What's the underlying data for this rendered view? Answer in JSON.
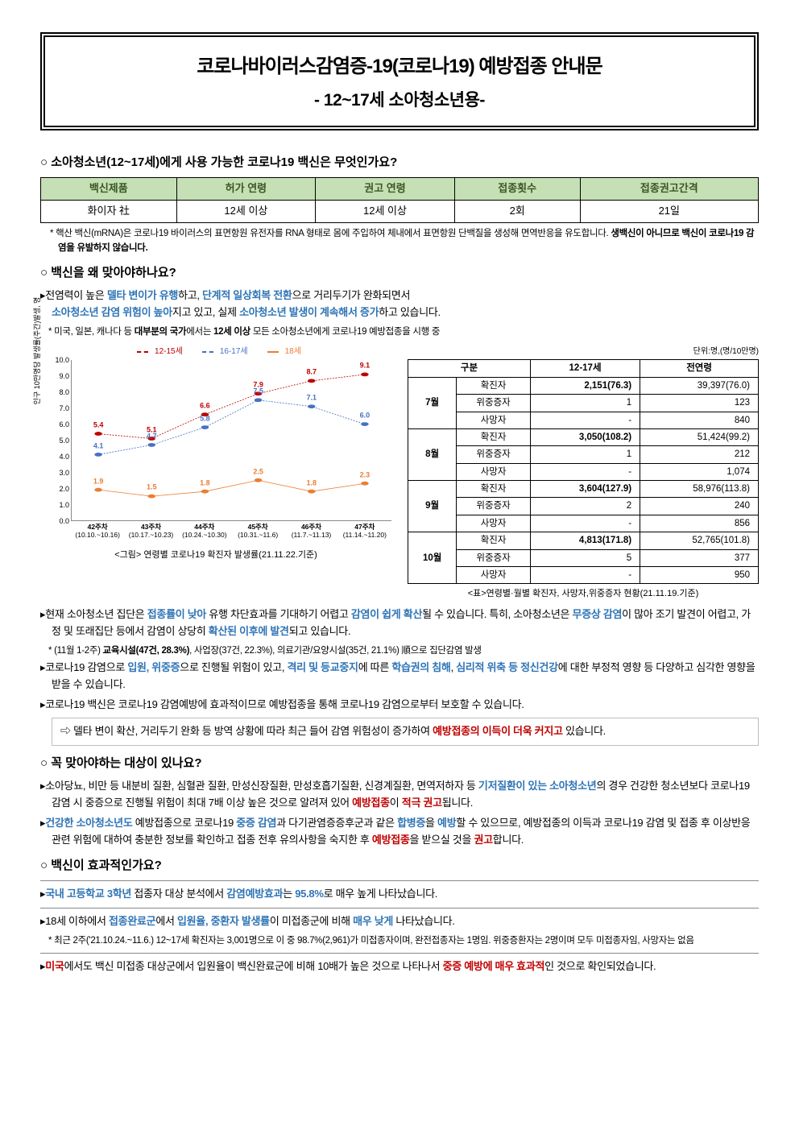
{
  "header": {
    "title_main": "코로나바이러스감염증-19(코로나19) 예방접종 안내문",
    "title_sub": "- 12~17세 소아청소년용-"
  },
  "q1": {
    "heading": "○ 소아청소년(12~17세)에게 사용 가능한 코로나19 백신은 무엇인가요?",
    "table": {
      "headers": [
        "백신제품",
        "허가 연령",
        "권고 연령",
        "접종횟수",
        "접종권고간격"
      ],
      "row": [
        "화이자 社",
        "12세 이상",
        "12세 이상",
        "2회",
        "21일"
      ]
    },
    "note": "* 핵산 백신(mRNA)은 코로나19 바이러스의 표면항원 유전자를 RNA 형태로 몸에 주입하여 체내에서 표면항원 단백질을 생성해 면역반응을 유도합니다. "
  },
  "q1_note_bold": "생백신이 아니므로 백신이 코로나19 감염을 유발하지 않습니다.",
  "q2": {
    "heading": "○ 백신을 왜 맞아야하나요?",
    "line1_a": "▸전염력이 높은 ",
    "line1_b": "델타 변이가 유행",
    "line1_c": "하고, ",
    "line1_d": "단계적 일상회복 전환",
    "line1_e": "으로 거리두기가 완화되면서",
    "line2_a": "소아청소년 감염 위험이 높아",
    "line2_b": "지고 있고, 실제 ",
    "line2_c": "소아청소년 발생이 계속해서 증가",
    "line2_d": "하고 있습니다.",
    "note": "* 미국, 일본, 캐나다 등 ",
    "note_b1": "대부분의 국가",
    "note_mid": "에서는 ",
    "note_b2": "12세 이상",
    "note_end": " 모든 소아청소년에게 코로나19 예방접종을 시행 중"
  },
  "chart": {
    "legend": [
      "12-15세",
      "16-17세",
      "18세"
    ],
    "colors": [
      "#c00000",
      "#4472c4",
      "#ed7d31"
    ],
    "ymin": 0.0,
    "ymax": 10.0,
    "ystep": 1.0,
    "x_labels": [
      "42주차\n(10.10.~10.16)",
      "43주차\n(10.17.~10.23)",
      "44주차\n(10.24.~10.30)",
      "45주차\n(10.31.~11.6)",
      "46주차\n(11.7.~11.13)",
      "47주차\n(11.14.~11.20)"
    ],
    "series": {
      "s1215": [
        5.4,
        5.1,
        6.6,
        7.9,
        8.7,
        9.1
      ],
      "s1617": [
        4.1,
        4.7,
        5.8,
        7.5,
        7.1,
        6.0
      ],
      "s18": [
        1.9,
        1.5,
        1.8,
        2.5,
        1.8,
        2.3
      ]
    },
    "caption": "<그림> 연령별 코로나19 확진자 발생률(21.11.22.기준)",
    "ylabel": "인구 10만명당 발생률(주간)발생, 명"
  },
  "stats": {
    "unit": "단위:명,(명/10만명)",
    "head": [
      "구분",
      "12-17세",
      "전연령"
    ],
    "months": [
      "7월",
      "8월",
      "9월",
      "10월"
    ],
    "rowlbls": [
      "확진자",
      "위중증자",
      "사망자"
    ],
    "data": [
      [
        [
          "2,151(76.3)",
          "39,397(76.0)"
        ],
        [
          "1",
          "123"
        ],
        [
          "-",
          "840"
        ]
      ],
      [
        [
          "3,050(108.2)",
          "51,424(99.2)"
        ],
        [
          "1",
          "212"
        ],
        [
          "-",
          "1,074"
        ]
      ],
      [
        [
          "3,604(127.9)",
          "58,976(113.8)"
        ],
        [
          "2",
          "240"
        ],
        [
          "-",
          "856"
        ]
      ],
      [
        [
          "4,813(171.8)",
          "52,765(101.8)"
        ],
        [
          "5",
          "377"
        ],
        [
          "-",
          "950"
        ]
      ]
    ],
    "caption": "<표>연령별·월별 확진자, 사망자,위중증자 현황(21.11.19.기준)"
  },
  "q2b": {
    "p1_a": "▸현재 소아청소년 집단은 ",
    "p1_b": "접종률이 낮아",
    "p1_c": " 유행 차단효과를 기대하기 어렵고 ",
    "p1_d": "감염이 쉽게 확산",
    "p1_e": "될 수 있습니다. 특히, 소아청소년은 ",
    "p1_f": "무증상 감염",
    "p1_g": "이 많아 조기 발견이 어렵고, 가정 및 또래집단 등에서 감염이 상당히 ",
    "p1_h": "확산된 이후에 발견",
    "p1_i": "되고 있습니다.",
    "p1_note_a": "* (11월 1-2주) ",
    "p1_note_b": "교육시설(47건, 28.3%)",
    "p1_note_c": ", 사업장(37건, 22.3%), 의료기관/요양시설(35건, 21.1%) 順으로 집단감염 발생",
    "p2_a": "▸코로나19 감염으로 ",
    "p2_b": "입원, 위중증",
    "p2_c": "으로 진행될 위험이 있고, ",
    "p2_d": "격리 및 등교중지",
    "p2_e": "에 따른 ",
    "p2_f": "학습권의 침해",
    "p2_g": ", ",
    "p2_h": "심리적 위축 등 정신건강",
    "p2_i": "에 대한 부정적 영향 등 다양하고 심각한 영향을 받을 수 있습니다.",
    "p3": "▸코로나19 백신은 코로나19 감염예방에 효과적이므로 예방접종을 통해 코로나19 감염으로부터 보호할 수 있습니다.",
    "callout_a": "⇨ 델타 변이 확산, 거리두기 완화 등 방역 상황에 따라 최근 들어 감염 위험성이 증가하여 ",
    "callout_b": "예방접종의 이득이 더욱 커지고",
    "callout_c": " 있습니다."
  },
  "q3": {
    "heading": "○ 꼭 맞아야하는 대상이 있나요?",
    "p1_a": "▸소아당뇨, 비만 등 내분비 질환, 심혈관 질환, 만성신장질환, 만성호흡기질환, 신경계질환, 면역저하자 등 ",
    "p1_b": "기저질환이 있는 소아청소년",
    "p1_c": "의 경우 건강한 청소년보다 코로나19 감염 시 중증으로 진행될 위험이 최대 7배 이상 높은 것으로 알려져 있어 ",
    "p1_d": "예방접종",
    "p1_e": "이 ",
    "p1_f": "적극 권고",
    "p1_g": "됩니다.",
    "p2_a": "▸",
    "p2_b": "건강한 소아청소년도",
    "p2_c": " 예방접종으로 코로나19 ",
    "p2_d": "중증 감염",
    "p2_e": "과 다기관염증증후군과 같은 ",
    "p2_f": "합병증",
    "p2_g": "을 ",
    "p2_h": "예방",
    "p2_i": "할 수 있으므로, 예방접종의 이득과 코로나19 감염 및 접종 후 이상반응 관련 위험에 대하여 충분한 정보를 확인하고 접종 전후 유의사항을 숙지한 후 ",
    "p2_j": "예방접종",
    "p2_k": "을 받으실 것을 ",
    "p2_l": "권고",
    "p2_m": "합니다."
  },
  "q4": {
    "heading": "○ 백신이 효과적인가요?",
    "p1_a": "▸",
    "p1_b": "국내 고등학교 3학년",
    "p1_c": " 접종자 대상 분석에서 ",
    "p1_d": "감염예방효과",
    "p1_e": "는 ",
    "p1_f": "95.8%",
    "p1_g": "로 매우 높게 나타났습니다.",
    "p2_a": "▸18세 이하에서 ",
    "p2_b": "접종완료군",
    "p2_c": "에서 ",
    "p2_d": "입원율, 중환자 발생률",
    "p2_e": "이 미접종군에 비해 ",
    "p2_f": "매우 낮게",
    "p2_g": " 나타났습니다.",
    "p2_note": "* 최근 2주('21.10.24.~11.6.) 12~17세 확진자는 3,001명으로 이 중 98.7%(2,961)가 미접종자이며, 완전접종자는 1명임. 위중증환자는 2명이며 모두 미접종자임, 사망자는 없음",
    "p3_a": "▸",
    "p3_b": "미국",
    "p3_c": "에서도 백신 미접종 대상군에서 입원율이 백신완료군에 비해 10배가 높은 것으로 나타나서 ",
    "p3_d": "중증 예방에 매우 효과적",
    "p3_e": "인 것으로 확인되었습니다."
  }
}
